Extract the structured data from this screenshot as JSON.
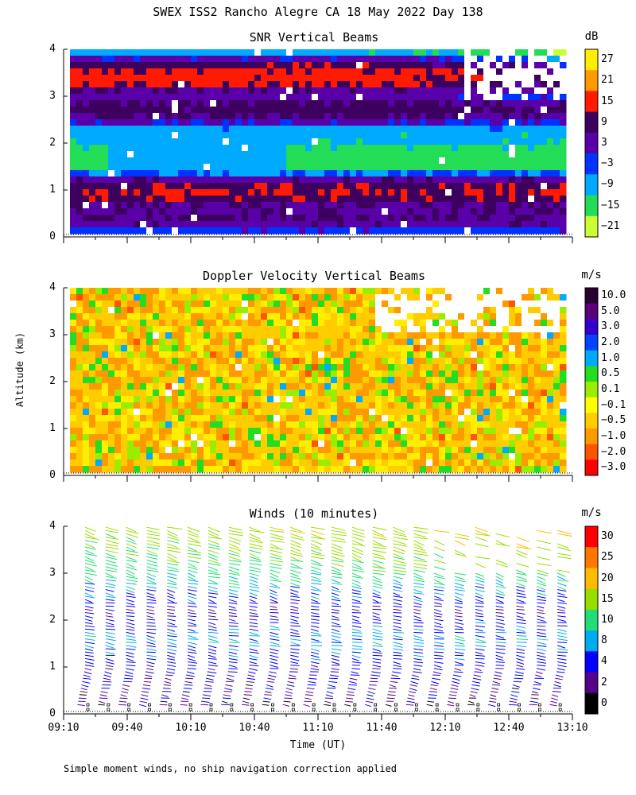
{
  "title": "SWEX ISS2 Rancho Alegre CA  18 May 2022 Day 138",
  "footnote": "Simple moment winds, no ship navigation correction applied",
  "y_axis_label": "Altitude (km)",
  "x_axis_label": "Time (UT)",
  "chart_data": [
    {
      "type": "heatmap",
      "title": "SNR Vertical Beams",
      "colorbar_unit": "dB",
      "colorbar_labels": [
        "27",
        "21",
        "15",
        "9",
        "3",
        "−3",
        "−9",
        "−15",
        "−21"
      ],
      "colorbar_colors": [
        "#ffee00",
        "#ff9900",
        "#ff1a00",
        "#3d005e",
        "#5a00a8",
        "#0033ff",
        "#00aaff",
        "#22dd55",
        "#ccff33"
      ],
      "xlim": [
        "09:10",
        "13:10"
      ],
      "ylim": [
        0,
        4
      ],
      "yticks": [
        "0",
        "1",
        "2",
        "3",
        "4"
      ],
      "layers": [
        {
          "altitude_km": 3.5,
          "approx_snr_db": 15
        },
        {
          "altitude_km": 2.8,
          "approx_snr_db": 9
        },
        {
          "altitude_km": 2.2,
          "approx_snr_db": -9
        },
        {
          "altitude_km": 1.0,
          "approx_snr_db": 12
        },
        {
          "altitude_km": 0.5,
          "approx_snr_db": 6
        }
      ]
    },
    {
      "type": "heatmap",
      "title": "Doppler Velocity Vertical Beams",
      "colorbar_unit": "m/s",
      "colorbar_labels": [
        "10.0",
        "5.0",
        "3.0",
        "2.0",
        "1.0",
        "0.5",
        "0.1",
        "−0.1",
        "−0.5",
        "−1.0",
        "−2.0",
        "−3.0"
      ],
      "colorbar_colors": [
        "#2a0030",
        "#5a007a",
        "#3300cc",
        "#0044ff",
        "#00aaff",
        "#22dd22",
        "#99ee00",
        "#ffff00",
        "#ffcc00",
        "#ff9900",
        "#ff5500",
        "#ff0000"
      ],
      "xlim": [
        "09:10",
        "13:10"
      ],
      "ylim": [
        0,
        4
      ],
      "yticks": [
        "0",
        "1",
        "2",
        "3",
        "4"
      ],
      "dominant_value_m_s": -0.5
    },
    {
      "type": "scatter",
      "title": "Winds (10 minutes)",
      "colorbar_unit": "m/s",
      "colorbar_labels": [
        "30",
        "25",
        "20",
        "15",
        "10",
        "8",
        "4",
        "2",
        "0"
      ],
      "colorbar_colors": [
        "#ff0000",
        "#ff7700",
        "#ffbb00",
        "#99dd00",
        "#22dd77",
        "#00aaee",
        "#0000ff",
        "#550088",
        "#000000"
      ],
      "xlim": [
        "09:10",
        "13:10"
      ],
      "ylim": [
        0,
        4
      ],
      "yticks": [
        "0",
        "1",
        "2",
        "3",
        "4"
      ],
      "xticks": [
        "09:10",
        "09:40",
        "10:10",
        "10:40",
        "11:10",
        "11:40",
        "12:10",
        "12:40",
        "13:10"
      ],
      "profile_count": 24,
      "speed_by_altitude": [
        {
          "altitude_km": 0.3,
          "speed_m_s": 3
        },
        {
          "altitude_km": 1.0,
          "speed_m_s": 5
        },
        {
          "altitude_km": 1.6,
          "speed_m_s": 9
        },
        {
          "altitude_km": 2.2,
          "speed_m_s": 4
        },
        {
          "altitude_km": 2.8,
          "speed_m_s": 10
        },
        {
          "altitude_km": 3.4,
          "speed_m_s": 14
        },
        {
          "altitude_km": 3.9,
          "speed_m_s": 17
        }
      ]
    }
  ]
}
